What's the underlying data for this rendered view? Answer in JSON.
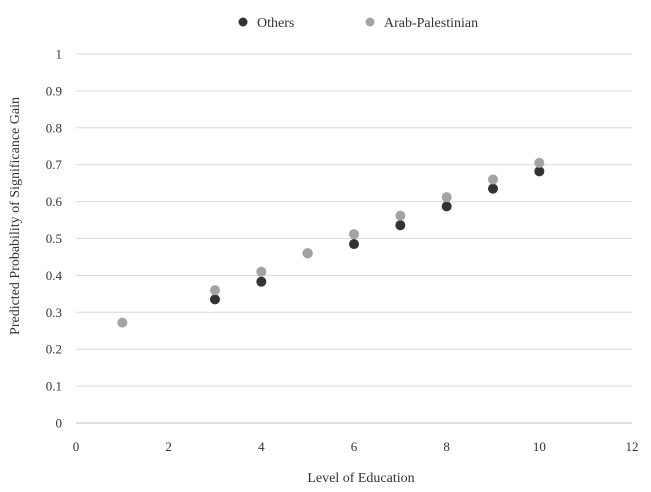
{
  "chart_data": {
    "type": "scatter",
    "title": "",
    "xlabel": "Level of Education",
    "ylabel": "Predicted Probability of Significance Gain",
    "xlim": [
      0,
      12
    ],
    "ylim": [
      0,
      1
    ],
    "xticks": [
      "0",
      "2",
      "4",
      "6",
      "8",
      "10",
      "12"
    ],
    "yticks": [
      "0",
      "0.1",
      "0.2",
      "0.3",
      "0.4",
      "0.5",
      "0.6",
      "0.7",
      "0.8",
      "0.9",
      "1"
    ],
    "grid": "horizontal",
    "legend_position": "top",
    "series": [
      {
        "name": "Others",
        "color": "#333333",
        "points": [
          {
            "x": 3,
            "y": 0.335
          },
          {
            "x": 4,
            "y": 0.383
          },
          {
            "x": 5,
            "y": 0.46
          },
          {
            "x": 6,
            "y": 0.485
          },
          {
            "x": 7,
            "y": 0.536
          },
          {
            "x": 8,
            "y": 0.587
          },
          {
            "x": 9,
            "y": 0.635
          },
          {
            "x": 10,
            "y": 0.682
          }
        ]
      },
      {
        "name": "Arab-Palestinian",
        "color": "#a3a3a3",
        "points": [
          {
            "x": 1,
            "y": 0.272
          },
          {
            "x": 3,
            "y": 0.36
          },
          {
            "x": 4,
            "y": 0.41
          },
          {
            "x": 5,
            "y": 0.46
          },
          {
            "x": 6,
            "y": 0.512
          },
          {
            "x": 7,
            "y": 0.562
          },
          {
            "x": 8,
            "y": 0.612
          },
          {
            "x": 9,
            "y": 0.66
          },
          {
            "x": 10,
            "y": 0.705
          }
        ]
      }
    ]
  }
}
